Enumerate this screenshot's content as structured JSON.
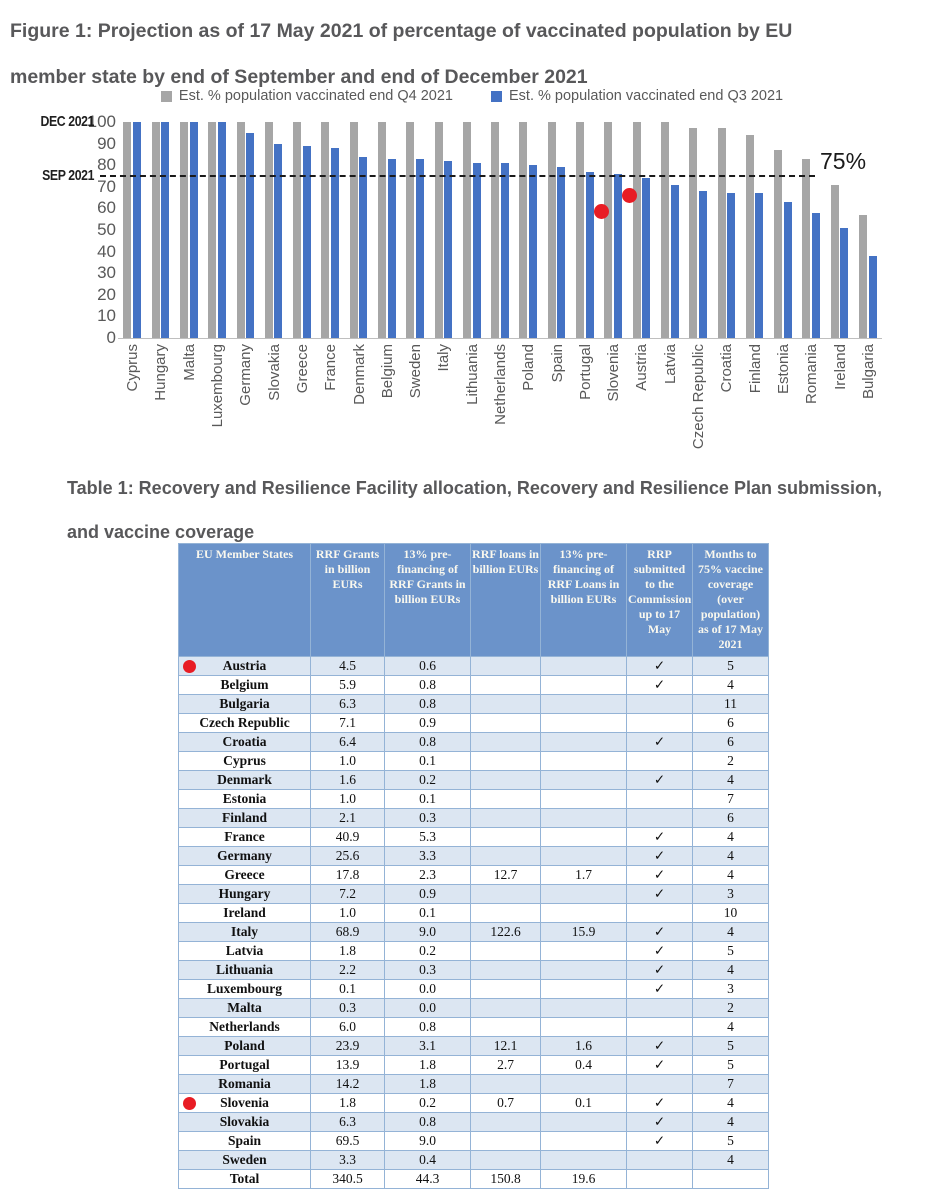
{
  "figure": {
    "title_line1": "Figure 1: Projection as of 17 May 2021 of percentage of vaccinated population by EU",
    "title_line2": "member state by end of September and end of December 2021"
  },
  "chart_data": {
    "type": "bar",
    "categories": [
      "Cyprus",
      "Hungary",
      "Malta",
      "Luxembourg",
      "Germany",
      "Slovakia",
      "Greece",
      "France",
      "Denmark",
      "Belgium",
      "Sweden",
      "Italy",
      "Lithuania",
      "Netherlands",
      "Poland",
      "Spain",
      "Portugal",
      "Slovenia",
      "Austria",
      "Latvia",
      "Czech Republic",
      "Croatia",
      "Finland",
      "Estonia",
      "Romania",
      "Ireland",
      "Bulgaria"
    ],
    "series": [
      {
        "name": "Est. % population vaccinated end Q4 2021",
        "color": "#a6a6a6",
        "values": [
          100,
          100,
          100,
          100,
          100,
          100,
          100,
          100,
          100,
          100,
          100,
          100,
          100,
          100,
          100,
          100,
          100,
          100,
          100,
          100,
          97,
          97,
          94,
          87,
          83,
          71,
          57
        ]
      },
      {
        "name": "Est. % population vaccinated end Q3 2021",
        "color": "#4472c4",
        "values": [
          100,
          100,
          100,
          100,
          95,
          90,
          89,
          88,
          84,
          83,
          83,
          82,
          81,
          81,
          80,
          79,
          77,
          76,
          74,
          71,
          68,
          67,
          67,
          63,
          58,
          51,
          38
        ]
      }
    ],
    "ylim": [
      0,
      100
    ],
    "yticks": [
      0,
      10,
      20,
      30,
      40,
      50,
      60,
      70,
      80,
      90,
      100
    ],
    "axis_annotations": [
      {
        "label": "DEC 2021",
        "value": 100
      },
      {
        "label": "SEP 2021",
        "value": 75
      }
    ],
    "reference_line": {
      "value": 75,
      "label": "75%",
      "style": "dashed",
      "color": "#1a1a1a"
    },
    "highlight_dots": [
      {
        "category": "Slovenia",
        "value": 59,
        "color": "#e81c24"
      },
      {
        "category": "Austria",
        "value": 66,
        "color": "#e81c24"
      }
    ],
    "legend_position": "top",
    "grid": false
  },
  "table": {
    "title_line1": "Table 1: Recovery and Resilience Facility allocation, Recovery and Resilience Plan submission,",
    "title_line2": "and vaccine coverage",
    "columns": [
      "EU Member States",
      "RRF Grants in billion EURs",
      "13% pre-financing of RRF Grants in billion EURs",
      "RRF loans in billion EURs",
      "13% pre-financing of RRF Loans in billion EURs",
      "RRP submitted to the Commission up to 17 May",
      "Months to 75% vaccine coverage (over population) as of 17 May 2021"
    ],
    "rows": [
      {
        "name": "Austria",
        "dot": true,
        "grants": "4.5",
        "prefin_grants": "0.6",
        "loans": "",
        "prefin_loans": "",
        "rrp": "✓",
        "months": "5"
      },
      {
        "name": "Belgium",
        "dot": false,
        "grants": "5.9",
        "prefin_grants": "0.8",
        "loans": "",
        "prefin_loans": "",
        "rrp": "✓",
        "months": "4"
      },
      {
        "name": "Bulgaria",
        "dot": false,
        "grants": "6.3",
        "prefin_grants": "0.8",
        "loans": "",
        "prefin_loans": "",
        "rrp": "",
        "months": "11"
      },
      {
        "name": "Czech Republic",
        "dot": false,
        "grants": "7.1",
        "prefin_grants": "0.9",
        "loans": "",
        "prefin_loans": "",
        "rrp": "",
        "months": "6"
      },
      {
        "name": "Croatia",
        "dot": false,
        "grants": "6.4",
        "prefin_grants": "0.8",
        "loans": "",
        "prefin_loans": "",
        "rrp": "✓",
        "months": "6"
      },
      {
        "name": "Cyprus",
        "dot": false,
        "grants": "1.0",
        "prefin_grants": "0.1",
        "loans": "",
        "prefin_loans": "",
        "rrp": "",
        "months": "2"
      },
      {
        "name": "Denmark",
        "dot": false,
        "grants": "1.6",
        "prefin_grants": "0.2",
        "loans": "",
        "prefin_loans": "",
        "rrp": "✓",
        "months": "4"
      },
      {
        "name": "Estonia",
        "dot": false,
        "grants": "1.0",
        "prefin_grants": "0.1",
        "loans": "",
        "prefin_loans": "",
        "rrp": "",
        "months": "7"
      },
      {
        "name": "Finland",
        "dot": false,
        "grants": "2.1",
        "prefin_grants": "0.3",
        "loans": "",
        "prefin_loans": "",
        "rrp": "",
        "months": "6"
      },
      {
        "name": "France",
        "dot": false,
        "grants": "40.9",
        "prefin_grants": "5.3",
        "loans": "",
        "prefin_loans": "",
        "rrp": "✓",
        "months": "4"
      },
      {
        "name": "Germany",
        "dot": false,
        "grants": "25.6",
        "prefin_grants": "3.3",
        "loans": "",
        "prefin_loans": "",
        "rrp": "✓",
        "months": "4"
      },
      {
        "name": "Greece",
        "dot": false,
        "grants": "17.8",
        "prefin_grants": "2.3",
        "loans": "12.7",
        "prefin_loans": "1.7",
        "rrp": "✓",
        "months": "4"
      },
      {
        "name": "Hungary",
        "dot": false,
        "grants": "7.2",
        "prefin_grants": "0.9",
        "loans": "",
        "prefin_loans": "",
        "rrp": "✓",
        "months": "3"
      },
      {
        "name": "Ireland",
        "dot": false,
        "grants": "1.0",
        "prefin_grants": "0.1",
        "loans": "",
        "prefin_loans": "",
        "rrp": "",
        "months": "10"
      },
      {
        "name": "Italy",
        "dot": false,
        "grants": "68.9",
        "prefin_grants": "9.0",
        "loans": "122.6",
        "prefin_loans": "15.9",
        "rrp": "✓",
        "months": "4"
      },
      {
        "name": "Latvia",
        "dot": false,
        "grants": "1.8",
        "prefin_grants": "0.2",
        "loans": "",
        "prefin_loans": "",
        "rrp": "✓",
        "months": "5"
      },
      {
        "name": "Lithuania",
        "dot": false,
        "grants": "2.2",
        "prefin_grants": "0.3",
        "loans": "",
        "prefin_loans": "",
        "rrp": "✓",
        "months": "4"
      },
      {
        "name": "Luxembourg",
        "dot": false,
        "grants": "0.1",
        "prefin_grants": "0.0",
        "loans": "",
        "prefin_loans": "",
        "rrp": "✓",
        "months": "3"
      },
      {
        "name": "Malta",
        "dot": false,
        "grants": "0.3",
        "prefin_grants": "0.0",
        "loans": "",
        "prefin_loans": "",
        "rrp": "",
        "months": "2"
      },
      {
        "name": "Netherlands",
        "dot": false,
        "grants": "6.0",
        "prefin_grants": "0.8",
        "loans": "",
        "prefin_loans": "",
        "rrp": "",
        "months": "4"
      },
      {
        "name": "Poland",
        "dot": false,
        "grants": "23.9",
        "prefin_grants": "3.1",
        "loans": "12.1",
        "prefin_loans": "1.6",
        "rrp": "✓",
        "months": "5"
      },
      {
        "name": "Portugal",
        "dot": false,
        "grants": "13.9",
        "prefin_grants": "1.8",
        "loans": "2.7",
        "prefin_loans": "0.4",
        "rrp": "✓",
        "months": "5"
      },
      {
        "name": "Romania",
        "dot": false,
        "grants": "14.2",
        "prefin_grants": "1.8",
        "loans": "",
        "prefin_loans": "",
        "rrp": "",
        "months": "7"
      },
      {
        "name": "Slovenia",
        "dot": true,
        "grants": "1.8",
        "prefin_grants": "0.2",
        "loans": "0.7",
        "prefin_loans": "0.1",
        "rrp": "✓",
        "months": "4"
      },
      {
        "name": "Slovakia",
        "dot": false,
        "grants": "6.3",
        "prefin_grants": "0.8",
        "loans": "",
        "prefin_loans": "",
        "rrp": "✓",
        "months": "4"
      },
      {
        "name": "Spain",
        "dot": false,
        "grants": "69.5",
        "prefin_grants": "9.0",
        "loans": "",
        "prefin_loans": "",
        "rrp": "✓",
        "months": "5"
      },
      {
        "name": "Sweden",
        "dot": false,
        "grants": "3.3",
        "prefin_grants": "0.4",
        "loans": "",
        "prefin_loans": "",
        "rrp": "",
        "months": "4"
      },
      {
        "name": "Total",
        "dot": false,
        "grants": "340.5",
        "prefin_grants": "44.3",
        "loans": "150.8",
        "prefin_loans": "19.6",
        "rrp": "",
        "months": ""
      }
    ]
  },
  "colors": {
    "title_text": "#58585a",
    "bar_gray": "#a6a6a6",
    "bar_blue": "#4472c4",
    "red_dot": "#e81c24",
    "header_bg": "#6b93ca",
    "row_stripe": "#dce6f2",
    "table_border": "#94b3d6"
  }
}
